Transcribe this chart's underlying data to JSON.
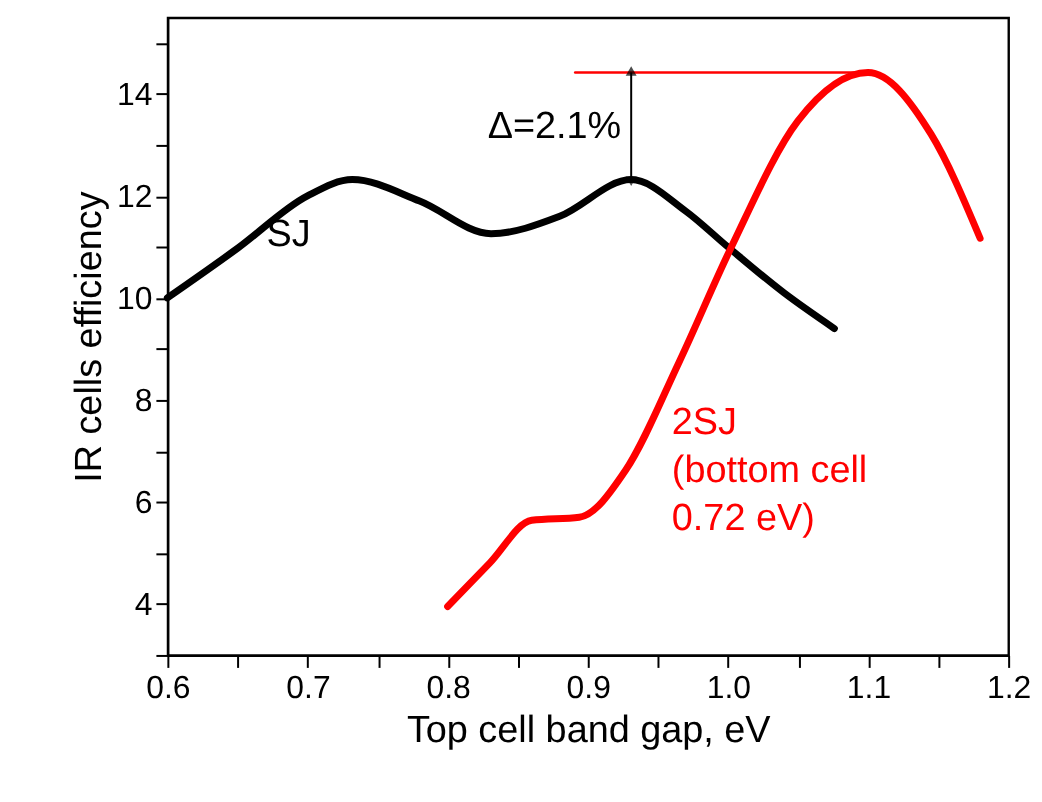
{
  "chart_data": {
    "type": "line",
    "xlabel": "Top cell band gap, eV",
    "ylabel": "IR cells efficiency",
    "xlim": [
      0.6,
      1.2
    ],
    "ylim": [
      3,
      15.5
    ],
    "xticks": [
      0.6,
      {
        "value": 0.65,
        "label": null
      },
      0.7,
      {
        "value": 0.75,
        "label": null
      },
      0.8,
      {
        "value": 0.85,
        "label": null
      },
      0.9,
      {
        "value": 0.95,
        "label": null
      },
      {
        "value": 1.0,
        "label": "1.0"
      },
      {
        "value": 1.05,
        "label": null
      },
      1.1,
      {
        "value": 1.15,
        "label": null
      },
      1.2
    ],
    "yticks": [
      {
        "value": 3,
        "label": null
      },
      4,
      {
        "value": 5,
        "label": null
      },
      6,
      {
        "value": 7,
        "label": null
      },
      8,
      {
        "value": 9,
        "label": null
      },
      10,
      {
        "value": 11,
        "label": null
      },
      12,
      {
        "value": 13,
        "label": null
      },
      14,
      {
        "value": 15,
        "label": null
      }
    ],
    "series": [
      {
        "name": "SJ",
        "color": "#000000",
        "x": [
          0.6,
          0.65,
          0.7,
          0.732,
          0.78,
          0.831,
          0.88,
          0.931,
          0.97,
          1.0,
          1.04,
          1.076
        ],
        "values": [
          10.0,
          10.97,
          12.0,
          12.32,
          11.9,
          11.26,
          11.6,
          12.32,
          11.7,
          11.0,
          10.1,
          9.4
        ]
      },
      {
        "name": "2SJ\n(bottom cell\n0.72 eV)",
        "color": "#ff0000",
        "x": [
          0.8,
          0.83,
          0.86,
          0.894,
          0.927,
          0.965,
          1.002,
          1.05,
          1.1,
          1.145,
          1.18
        ],
        "values": [
          3.95,
          4.8,
          5.64,
          5.7,
          6.62,
          8.73,
          10.97,
          13.47,
          14.42,
          13.21,
          11.17
        ]
      },
      {
        "color": "#ff0000",
        "x": [
          0.891,
          1.1
        ],
        "values": [
          14.42,
          14.42
        ]
      }
    ],
    "annotations": [
      {
        "text": "Δ=2.1%",
        "x": 0.931,
        "y": 14.42
      }
    ]
  }
}
